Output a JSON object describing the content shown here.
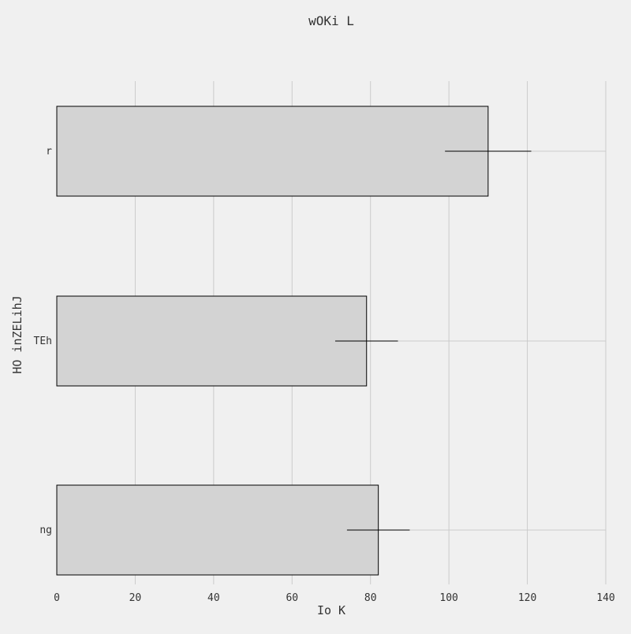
{
  "chart_data": {
    "type": "bar",
    "orientation": "horizontal",
    "title": "wOKi L",
    "xlabel": "Io  K",
    "ylabel": "HO inZELihJ",
    "categories": [
      "r",
      "TEh",
      "ng"
    ],
    "values": [
      110,
      79,
      82
    ],
    "errors": [
      11,
      8,
      8
    ],
    "xlim": [
      0,
      140
    ],
    "xticks": [
      0,
      20,
      40,
      60,
      80,
      100,
      120,
      140
    ],
    "grid": true,
    "legend": "none",
    "colors": {
      "background": "#f0f0f0",
      "bar_fill": "#d3d3d3",
      "bar_edge": "#000000",
      "grid": "#cbcbcb",
      "text": "#333333"
    }
  }
}
